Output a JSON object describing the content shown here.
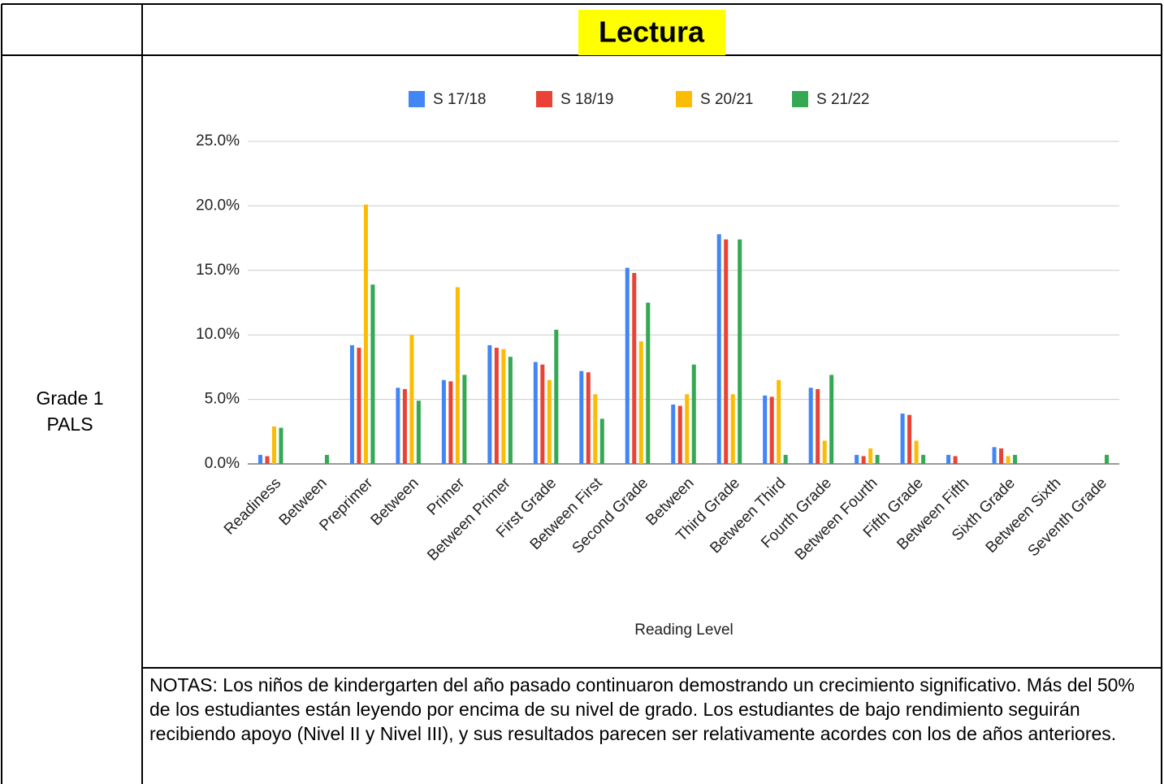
{
  "header": {
    "title": "Lectura"
  },
  "row_label": [
    "Grade 1",
    "PALS"
  ],
  "notes": "NOTAS: Los niños de kindergarten del año pasado continuaron demostrando un crecimiento significativo. Más del 50% de los estudiantes están leyendo por encima de su nivel de grado. Los estudiantes de bajo rendimiento seguirán recibiendo apoyo (Nivel II y Nivel III), y sus resultados parecen ser relativamente acordes con los de años anteriores.",
  "chart_data": {
    "type": "bar",
    "x_label": "Reading Level",
    "categories": [
      "Readiness",
      "Between",
      "Preprimer",
      "Between",
      "Primer",
      "Between Primer",
      "First Grade",
      "Between First",
      "Second Grade",
      "Between",
      "Third Grade",
      "Between Third",
      "Fourth Grade",
      "Between Fourth",
      "Fifth Grade",
      "Between Fifth",
      "Sixth Grade",
      "Between Sixth",
      "Seventh Grade"
    ],
    "series": [
      {
        "name": "S 17/18",
        "color": "#4285f4",
        "values": [
          0.7,
          0,
          9.2,
          5.9,
          6.5,
          9.2,
          7.9,
          7.2,
          15.2,
          4.6,
          17.8,
          5.3,
          5.9,
          0.7,
          3.9,
          0.7,
          1.3,
          0,
          0
        ]
      },
      {
        "name": "S 18/19",
        "color": "#ea4335",
        "values": [
          0.6,
          0,
          9.0,
          5.8,
          6.4,
          9.0,
          7.7,
          7.1,
          14.8,
          4.5,
          17.4,
          5.2,
          5.8,
          0.6,
          3.8,
          0.6,
          1.2,
          0,
          0
        ]
      },
      {
        "name": "S 20/21",
        "color": "#fbbc04",
        "values": [
          2.9,
          0,
          20.1,
          10.0,
          13.7,
          8.9,
          6.5,
          5.4,
          9.5,
          5.4,
          5.4,
          6.5,
          1.8,
          1.2,
          1.8,
          0,
          0.6,
          0,
          0
        ]
      },
      {
        "name": "S 21/22",
        "color": "#34a853",
        "values": [
          2.8,
          0.7,
          13.9,
          4.9,
          6.9,
          8.3,
          10.4,
          3.5,
          12.5,
          7.7,
          17.4,
          0.7,
          6.9,
          0.7,
          0.7,
          0,
          0.7,
          0,
          0.7
        ]
      }
    ],
    "ylim": [
      0,
      25
    ],
    "yticks": [
      {
        "value": 0,
        "label": "0.0%"
      },
      {
        "value": 5,
        "label": "5.0%"
      },
      {
        "value": 10,
        "label": "10.0%"
      },
      {
        "value": 15,
        "label": "15.0%"
      },
      {
        "value": 20,
        "label": "20.0%"
      },
      {
        "value": 25,
        "label": "25.0%"
      }
    ],
    "grid": true,
    "legend": "top"
  }
}
